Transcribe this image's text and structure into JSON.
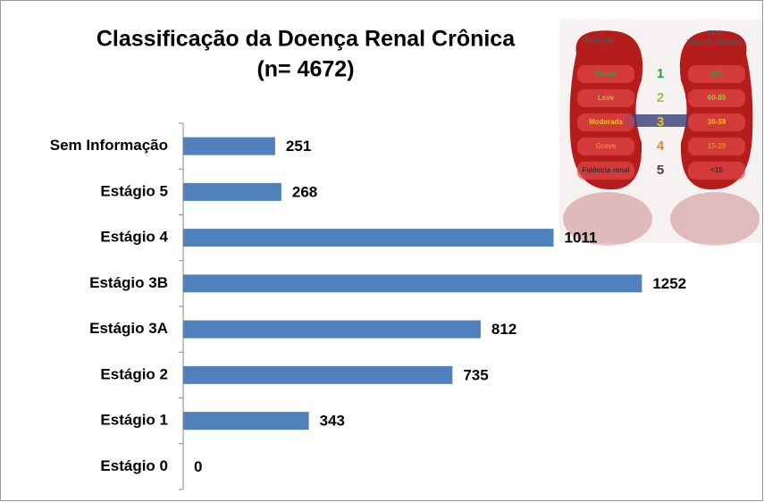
{
  "chart_data": {
    "type": "hbar",
    "title": "Classificação da Doença Renal Crônica",
    "subtitle": "(n= 4672)",
    "categories": [
      "Sem Informação",
      "Estágio 5",
      "Estágio 4",
      "Estágio 3B",
      "Estágio 3A",
      "Estágio 2",
      "Estágio 1",
      "Estágio 0"
    ],
    "values": [
      251,
      268,
      1011,
      1252,
      812,
      735,
      343,
      0
    ],
    "color": "#4f81bd",
    "xlim": [
      0,
      1400
    ]
  },
  "illustration": {
    "stages_header": "Estágios",
    "tfg_header": "TFG",
    "tfg_subheader": "Taxa de filtração",
    "rows": [
      {
        "label": "Pouca",
        "stage": "1",
        "tfg": "≥90",
        "color": "#2e9e3e"
      },
      {
        "label": "Leve",
        "stage": "2",
        "tfg": "60-89",
        "color": "#9bc43a"
      },
      {
        "label": "Moderada",
        "stage": "3",
        "tfg": "30-59",
        "color": "#e8c21c"
      },
      {
        "label": "Grave",
        "stage": "4",
        "tfg": "15-29",
        "color": "#e8892a"
      },
      {
        "label": "Falência renal",
        "stage": "5",
        "tfg": "<15",
        "color": "#444444"
      }
    ]
  }
}
